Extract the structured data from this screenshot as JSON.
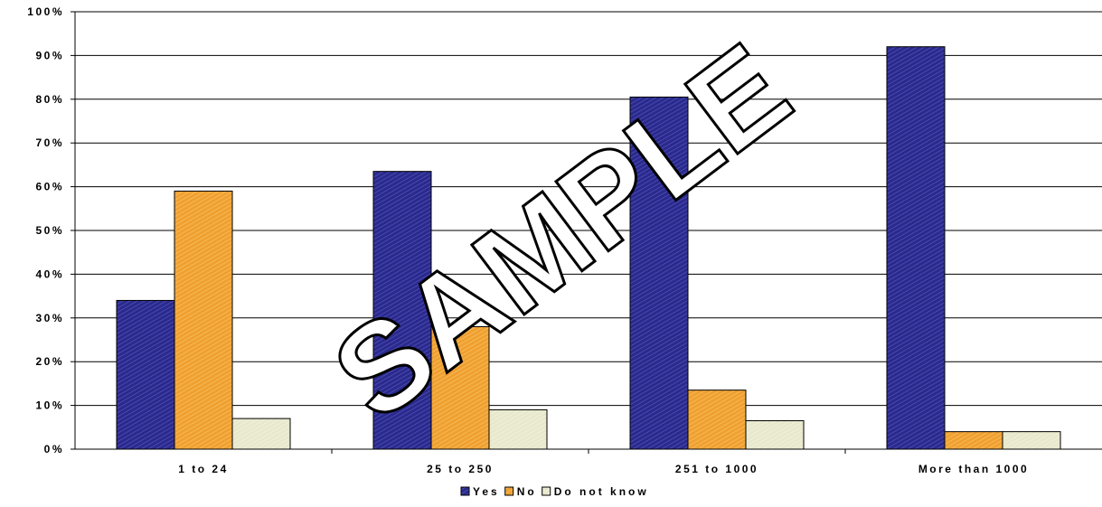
{
  "chart_data": {
    "type": "bar",
    "categories": [
      "1 to 24",
      "25 to 250",
      "251 to 1000",
      "More than 1000"
    ],
    "series": [
      {
        "name": "Yes",
        "values": [
          34,
          63.5,
          80.5,
          92
        ],
        "color": "#2a2a8c"
      },
      {
        "name": "No",
        "values": [
          59,
          28,
          13.5,
          4
        ],
        "color": "#f0a030"
      },
      {
        "name": "Do not know",
        "values": [
          7,
          9,
          6.5,
          4
        ],
        "color": "#e8e8cc"
      }
    ],
    "ylim": [
      0,
      100
    ],
    "yticks": [
      "0%",
      "10%",
      "20%",
      "30%",
      "40%",
      "50%",
      "60%",
      "70%",
      "80%",
      "90%",
      "100%"
    ],
    "grid": true,
    "legend_position": "bottom",
    "watermark": "SAMPLE"
  }
}
